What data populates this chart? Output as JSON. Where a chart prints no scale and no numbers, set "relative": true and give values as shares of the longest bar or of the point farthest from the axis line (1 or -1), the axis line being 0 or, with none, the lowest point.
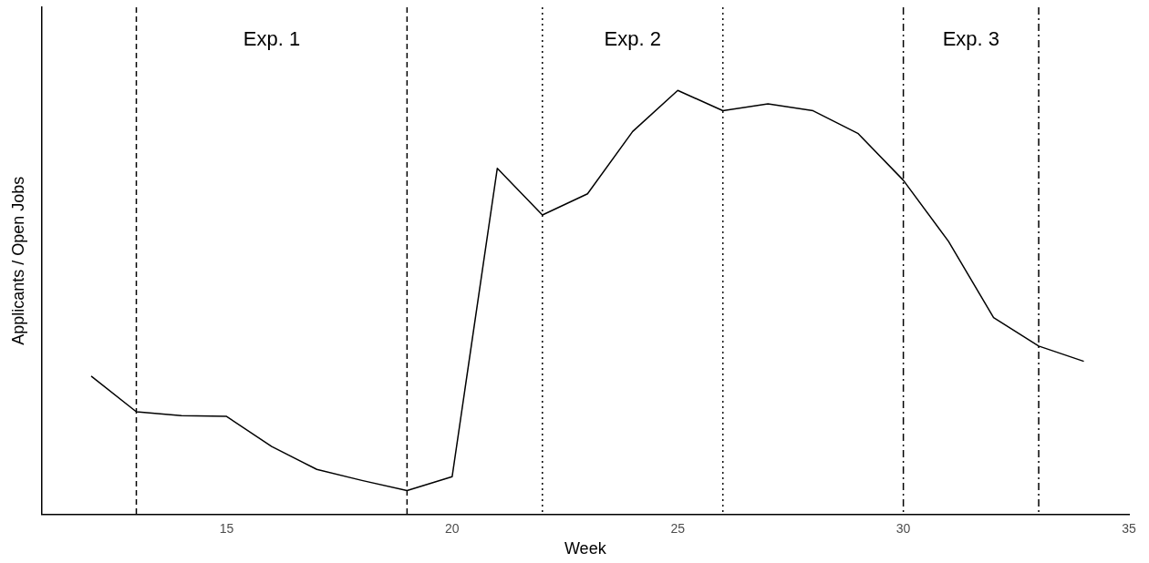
{
  "chart_data": {
    "type": "line",
    "xlabel": "Week",
    "ylabel": "Applicants / Open Jobs",
    "relative": true,
    "x": [
      12,
      13,
      14,
      15,
      16,
      17,
      18,
      19,
      20,
      21,
      22,
      23,
      24,
      25,
      26,
      27,
      28,
      29,
      30,
      31,
      32,
      33,
      34
    ],
    "series": [
      {
        "color": "#000000",
        "values": [
          0.326,
          0.242,
          0.233,
          0.231,
          0.16,
          0.106,
          0.08,
          0.056,
          0.089,
          0.816,
          0.706,
          0.756,
          0.903,
          1,
          0.952,
          0.968,
          0.952,
          0.898,
          0.788,
          0.644,
          0.464,
          0.397,
          0.361
        ]
      }
    ],
    "xlim": [
      10.9,
      35
    ],
    "xticks": [
      15,
      20,
      25,
      30,
      35
    ],
    "grid": false,
    "legend": false,
    "marker": "none",
    "line_style": "solid",
    "ref_lines": [
      {
        "axis": "x",
        "value": 13,
        "line_style": "dashed",
        "color": "#000000"
      },
      {
        "axis": "x",
        "value": 19,
        "line_style": "dashed",
        "color": "#000000"
      },
      {
        "axis": "x",
        "value": 22,
        "line_style": "dotted",
        "color": "#000000"
      },
      {
        "axis": "x",
        "value": 26,
        "line_style": "dotted",
        "color": "#000000"
      },
      {
        "axis": "x",
        "value": 30,
        "line_style": "dashdot",
        "color": "#000000"
      },
      {
        "axis": "x",
        "value": 33,
        "line_style": "dashdot",
        "color": "#000000"
      }
    ],
    "annotations": [
      "Exp. 1",
      "Exp. 2",
      "Exp. 3"
    ]
  }
}
